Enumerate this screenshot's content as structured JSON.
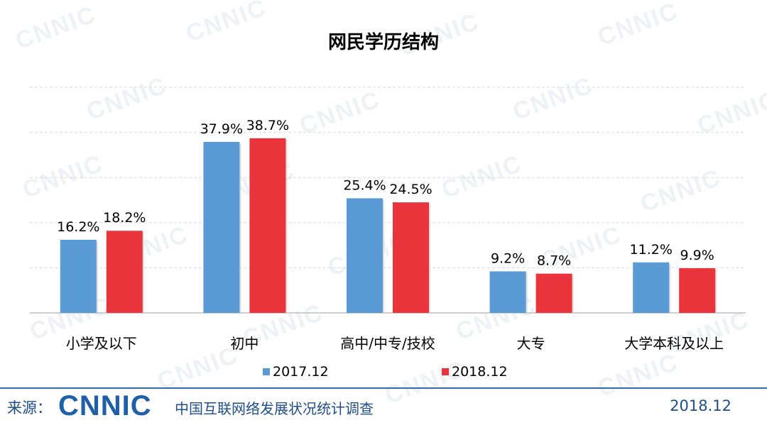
{
  "chart_data": {
    "type": "bar",
    "title": "网民学历结构",
    "categories": [
      "小学及以下",
      "初中",
      "高中/中专/技校",
      "大专",
      "大学本科及以上"
    ],
    "series": [
      {
        "name": "2017.12",
        "values": [
          16.2,
          37.9,
          25.4,
          9.2,
          11.2
        ],
        "labels": [
          "16.2%",
          "37.9%",
          "25.4%",
          "9.2%",
          "11.2%"
        ],
        "color": "#5b9bd5"
      },
      {
        "name": "2018.12",
        "values": [
          18.2,
          38.7,
          24.5,
          8.7,
          9.9
        ],
        "labels": [
          "18.2%",
          "38.7%",
          "24.5%",
          "8.7%",
          "9.9%"
        ],
        "color": "#e8343a"
      }
    ],
    "ylim": [
      0,
      50
    ],
    "grid": true,
    "legend_position": "bottom"
  },
  "footer": {
    "source_label": "来源：",
    "logo_text": "CNNIC",
    "organization": "中国互联网络发展状况统计调查",
    "date": "2018.12"
  },
  "watermark_text": "CNNIC",
  "colors": {
    "axis": "#bfbfbf",
    "grid": "#d9d9d9",
    "brand": "#1f5fa8"
  }
}
